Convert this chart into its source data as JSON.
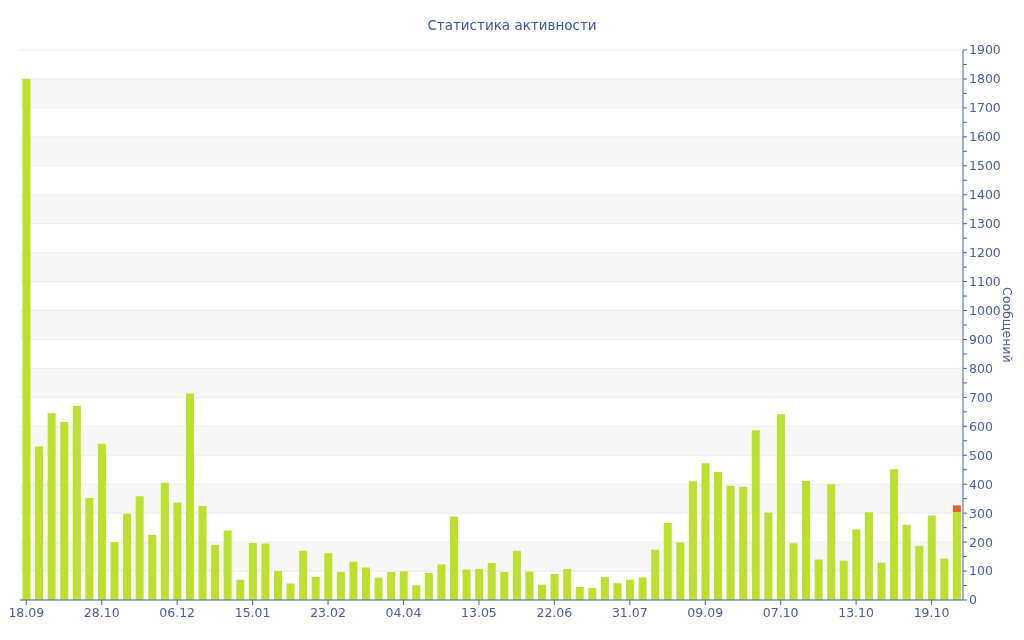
{
  "chart_data": {
    "type": "bar",
    "title": "Статистика активности",
    "ylabel": "Сообщений",
    "categories": [
      "18.09",
      null,
      null,
      null,
      null,
      null,
      "28.10",
      null,
      null,
      null,
      null,
      null,
      "06.12",
      null,
      null,
      null,
      null,
      null,
      "15.01",
      null,
      null,
      null,
      null,
      null,
      "23.02",
      null,
      null,
      null,
      null,
      null,
      "04.04",
      null,
      null,
      null,
      null,
      null,
      "13.05",
      null,
      null,
      null,
      null,
      null,
      "22.06",
      null,
      null,
      null,
      null,
      null,
      "31.07",
      null,
      null,
      null,
      null,
      null,
      "09.09",
      null,
      null,
      null,
      null,
      null,
      "07.10",
      null,
      null,
      null,
      null,
      null,
      "13.10",
      null,
      null,
      null,
      null,
      null,
      "19.10",
      null,
      null
    ],
    "series": [
      {
        "color": "#bde02f",
        "values": [
          1800,
          530,
          645,
          615,
          670,
          352,
          540,
          200,
          298,
          358,
          225,
          405,
          337,
          713,
          325,
          190,
          240,
          70,
          197,
          195,
          100,
          57,
          170,
          80,
          162,
          97,
          132,
          112,
          77,
          97,
          99,
          51,
          93,
          123,
          288,
          105,
          107,
          128,
          97,
          170,
          98,
          53,
          90,
          107,
          45,
          41,
          79,
          58,
          70,
          78,
          174,
          266,
          199,
          410,
          472,
          442,
          395,
          391,
          586,
          302,
          642,
          196,
          411,
          140,
          400,
          136,
          244,
          303,
          129,
          452,
          260,
          187,
          292,
          143,
          304
        ]
      },
      {
        "color": "#e3602a",
        "values": [
          null,
          null,
          null,
          null,
          null,
          null,
          null,
          null,
          null,
          null,
          null,
          null,
          null,
          null,
          null,
          null,
          null,
          null,
          null,
          null,
          null,
          null,
          null,
          null,
          null,
          null,
          null,
          null,
          null,
          null,
          null,
          null,
          null,
          null,
          null,
          null,
          null,
          null,
          null,
          null,
          null,
          null,
          null,
          null,
          null,
          null,
          null,
          null,
          null,
          null,
          null,
          null,
          null,
          null,
          null,
          null,
          null,
          null,
          null,
          null,
          null,
          null,
          null,
          null,
          null,
          null,
          null,
          null,
          null,
          null,
          null,
          null,
          null,
          null,
          23
        ]
      }
    ],
    "stacked": true,
    "ylim": [
      0,
      1900
    ],
    "yticks": [
      0,
      {
        "value": 50,
        "label": null
      },
      100,
      {
        "value": 150,
        "label": null
      },
      200,
      {
        "value": 250,
        "label": null
      },
      300,
      {
        "value": 350,
        "label": null
      },
      400,
      {
        "value": 450,
        "label": null
      },
      500,
      {
        "value": 550,
        "label": null
      },
      600,
      {
        "value": 650,
        "label": null
      },
      700,
      {
        "value": 750,
        "label": null
      },
      800,
      {
        "value": 850,
        "label": null
      },
      900,
      {
        "value": 950,
        "label": null
      },
      1000,
      {
        "value": 1050,
        "label": null
      },
      1100,
      {
        "value": 1150,
        "label": null
      },
      1200,
      {
        "value": 1250,
        "label": null
      },
      1300,
      {
        "value": 1350,
        "label": null
      },
      1400,
      {
        "value": 1450,
        "label": null
      },
      1500,
      {
        "value": 1550,
        "label": null
      },
      1600,
      {
        "value": 1650,
        "label": null
      },
      1700,
      {
        "value": 1750,
        "label": null
      },
      1800,
      {
        "value": 1850,
        "label": null
      },
      1900
    ],
    "grid": "y"
  }
}
